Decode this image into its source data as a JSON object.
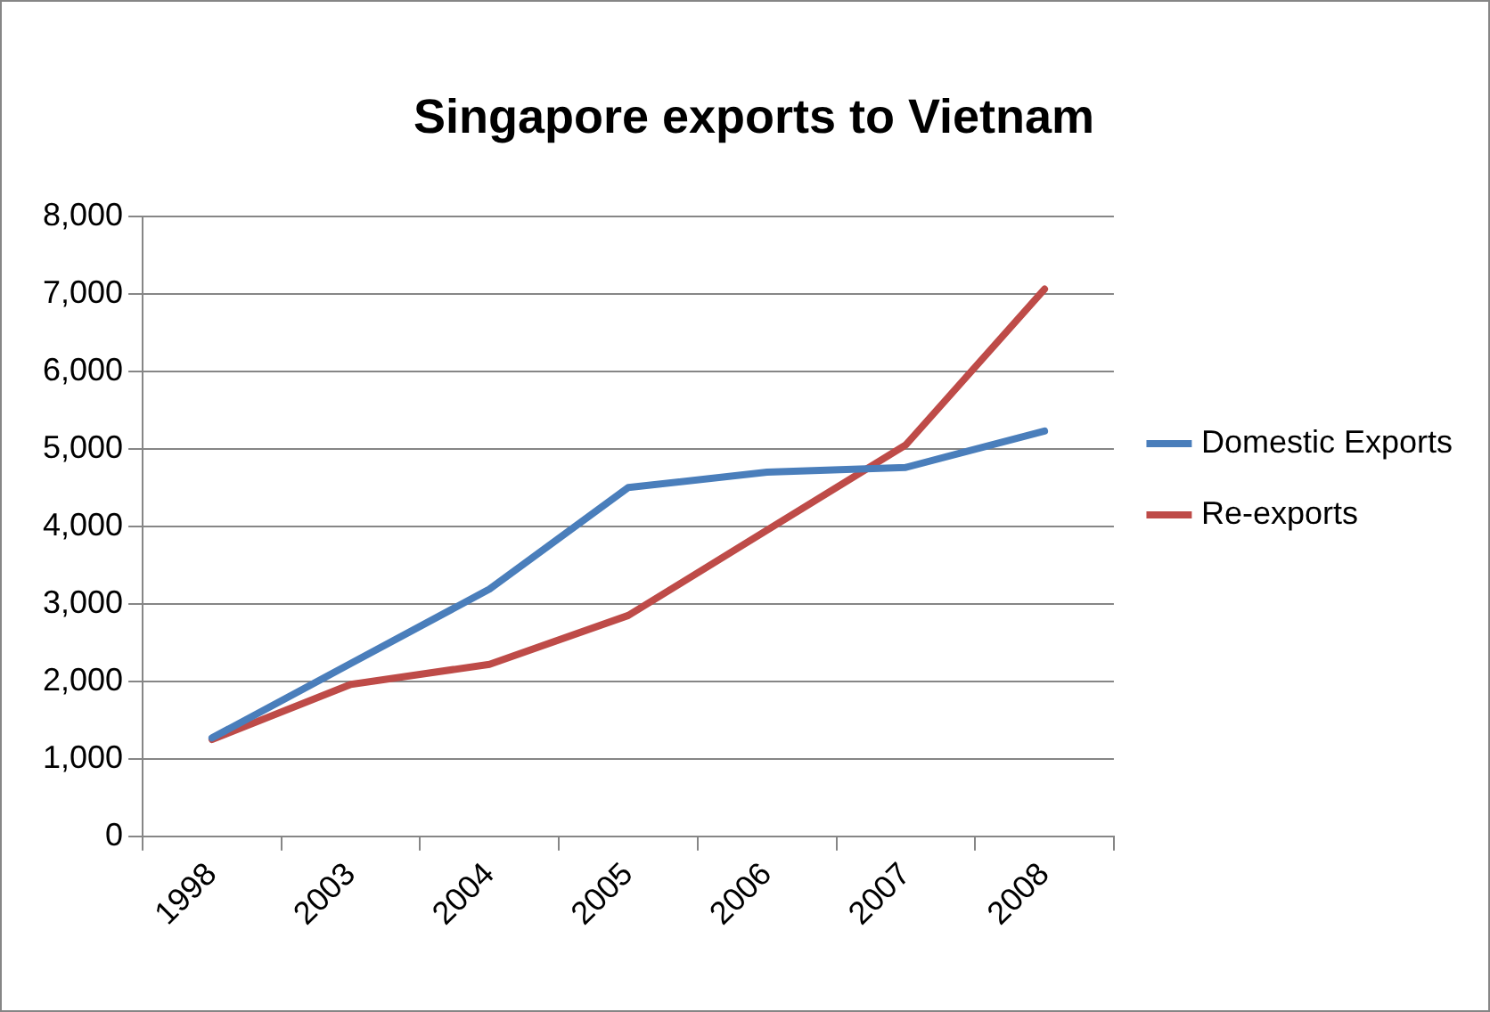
{
  "chart_data": {
    "type": "line",
    "title": "Singapore exports to Vietnam",
    "categories": [
      "1998",
      "2003",
      "2004",
      "2005",
      "2006",
      "2007",
      "2008"
    ],
    "series": [
      {
        "name": "Domestic Exports",
        "color": "#4a7ebb",
        "values": [
          1270,
          2230,
          3190,
          4500,
          4700,
          4760,
          5230
        ]
      },
      {
        "name": "Re-exports",
        "color": "#be4b48",
        "values": [
          1250,
          1960,
          2220,
          2850,
          3950,
          5050,
          7060
        ]
      }
    ],
    "ylim": [
      0,
      8000
    ],
    "yticks": [
      {
        "value": 0,
        "label": "0"
      },
      {
        "value": 1000,
        "label": "1,000"
      },
      {
        "value": 2000,
        "label": "2,000"
      },
      {
        "value": 3000,
        "label": "3,000"
      },
      {
        "value": 4000,
        "label": "4,000"
      },
      {
        "value": 5000,
        "label": "5,000"
      },
      {
        "value": 6000,
        "label": "6,000"
      },
      {
        "value": 7000,
        "label": "7,000"
      },
      {
        "value": 8000,
        "label": "8,000"
      }
    ],
    "grid": "y",
    "legend": "right",
    "marker": "none",
    "line_style": "solid"
  }
}
